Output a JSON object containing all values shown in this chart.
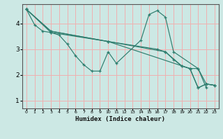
{
  "xlabel": "Humidex (Indice chaleur)",
  "bg_color": "#cce8e4",
  "grid_color": "#f0b0b0",
  "line_color": "#2e7d6e",
  "xlim": [
    -0.5,
    23.5
  ],
  "ylim": [
    0.7,
    4.75
  ],
  "xticks": [
    0,
    1,
    2,
    3,
    4,
    5,
    6,
    7,
    8,
    9,
    10,
    11,
    12,
    13,
    14,
    15,
    16,
    17,
    18,
    19,
    20,
    21,
    22,
    23
  ],
  "yticks": [
    1,
    2,
    3,
    4
  ],
  "lines": [
    {
      "x": [
        0,
        1,
        2,
        3,
        4,
        5,
        6,
        7,
        8,
        9,
        10,
        11,
        14,
        15,
        16,
        17,
        18,
        21,
        22
      ],
      "y": [
        4.55,
        3.95,
        3.7,
        3.65,
        3.55,
        3.2,
        2.75,
        2.4,
        2.15,
        2.15,
        2.9,
        2.45,
        3.35,
        4.35,
        4.5,
        4.25,
        2.9,
        2.25,
        1.5
      ]
    },
    {
      "x": [
        0,
        3,
        10,
        16,
        17,
        18,
        19,
        20,
        21,
        22,
        23
      ],
      "y": [
        4.55,
        3.65,
        3.3,
        3.0,
        2.9,
        2.6,
        2.35,
        2.25,
        2.25,
        1.65,
        1.6
      ]
    },
    {
      "x": [
        0,
        3,
        10,
        20,
        21,
        22,
        23
      ],
      "y": [
        4.55,
        3.7,
        3.3,
        2.25,
        1.5,
        1.65,
        1.6
      ]
    },
    {
      "x": [
        0,
        3,
        10,
        17,
        19,
        20,
        21,
        22,
        23
      ],
      "y": [
        4.55,
        3.7,
        3.3,
        2.9,
        2.35,
        2.25,
        1.5,
        1.65,
        1.6
      ]
    }
  ]
}
